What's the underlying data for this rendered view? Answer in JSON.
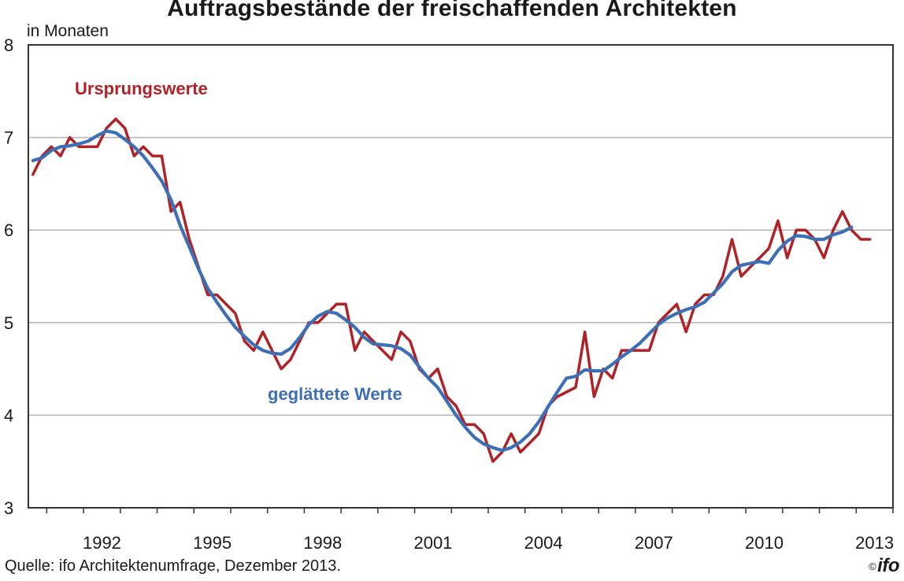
{
  "chart_data": {
    "type": "line",
    "title": "Auftragsbestände der freischaffenden Architekten",
    "ylabel": "in Monaten",
    "xlabel": "",
    "ylim": [
      3,
      8
    ],
    "yticks": [
      3,
      4,
      5,
      6,
      7,
      8
    ],
    "xlim": [
      1990.5,
      2014.0
    ],
    "xticks": [
      {
        "label": "1992",
        "x": 1992.0
      },
      {
        "label": "1995",
        "x": 1995.0
      },
      {
        "label": "1998",
        "x": 1998.0
      },
      {
        "label": "2001",
        "x": 2001.0
      },
      {
        "label": "2004",
        "x": 2004.0
      },
      {
        "label": "2007",
        "x": 2007.0
      },
      {
        "label": "2010",
        "x": 2010.0
      },
      {
        "label": "2013",
        "x": 2013.0
      }
    ],
    "grid": true,
    "series": [
      {
        "name": "Ursprungswerte",
        "color": "#b02226",
        "x": [
          1990.625,
          1990.875,
          1991.125,
          1991.375,
          1991.625,
          1991.875,
          1992.125,
          1992.375,
          1992.625,
          1992.875,
          1993.125,
          1993.375,
          1993.625,
          1993.875,
          1994.125,
          1994.375,
          1994.625,
          1994.875,
          1995.125,
          1995.375,
          1995.625,
          1995.875,
          1996.125,
          1996.375,
          1996.625,
          1996.875,
          1997.125,
          1997.375,
          1997.625,
          1997.875,
          1998.125,
          1998.375,
          1998.625,
          1998.875,
          1999.125,
          1999.375,
          1999.625,
          1999.875,
          2000.125,
          2000.375,
          2000.625,
          2000.875,
          2001.125,
          2001.375,
          2001.625,
          2001.875,
          2002.125,
          2002.375,
          2002.625,
          2002.875,
          2003.125,
          2003.375,
          2003.625,
          2003.875,
          2004.125,
          2004.375,
          2004.625,
          2004.875,
          2005.125,
          2005.375,
          2005.625,
          2005.875,
          2006.125,
          2006.375,
          2006.625,
          2006.875,
          2007.125,
          2007.375,
          2007.625,
          2007.875,
          2008.125,
          2008.375,
          2008.625,
          2008.875,
          2009.125,
          2009.375,
          2009.625,
          2009.875,
          2010.125,
          2010.375,
          2010.625,
          2010.875,
          2011.125,
          2011.375,
          2011.625,
          2011.875,
          2012.125,
          2012.375,
          2012.625,
          2012.875,
          2013.125,
          2013.375
        ],
        "values": [
          6.6,
          6.8,
          6.9,
          6.8,
          7.0,
          6.9,
          6.9,
          6.9,
          7.1,
          7.2,
          7.1,
          6.8,
          6.9,
          6.8,
          6.8,
          6.2,
          6.3,
          5.9,
          5.6,
          5.3,
          5.3,
          5.2,
          5.1,
          4.8,
          4.7,
          4.9,
          4.7,
          4.5,
          4.6,
          4.8,
          5.0,
          5.0,
          5.1,
          5.2,
          5.2,
          4.7,
          4.9,
          4.8,
          4.7,
          4.6,
          4.9,
          4.8,
          4.5,
          4.4,
          4.5,
          4.2,
          4.1,
          3.9,
          3.9,
          3.8,
          3.5,
          3.6,
          3.8,
          3.6,
          3.7,
          3.8,
          4.1,
          4.2,
          4.25,
          4.3,
          4.9,
          4.2,
          4.5,
          4.4,
          4.7,
          4.7,
          4.7,
          4.7,
          5.0,
          5.1,
          5.2,
          4.9,
          5.2,
          5.3,
          5.3,
          5.5,
          5.9,
          5.5,
          5.6,
          5.7,
          5.8,
          6.1,
          5.7,
          6.0,
          6.0,
          5.9,
          5.7,
          6.0,
          6.2,
          6.0,
          5.9,
          5.9
        ]
      },
      {
        "name": "geglättete Werte",
        "color": "#3d6fb6",
        "x": [
          1990.625,
          1990.875,
          1991.125,
          1991.375,
          1991.625,
          1991.875,
          1992.125,
          1992.375,
          1992.625,
          1992.875,
          1993.125,
          1993.375,
          1993.625,
          1993.875,
          1994.125,
          1994.375,
          1994.625,
          1994.875,
          1995.125,
          1995.375,
          1995.625,
          1995.875,
          1996.125,
          1996.375,
          1996.625,
          1996.875,
          1997.125,
          1997.375,
          1997.625,
          1997.875,
          1998.125,
          1998.375,
          1998.625,
          1998.875,
          1999.125,
          1999.375,
          1999.625,
          1999.875,
          2000.125,
          2000.375,
          2000.625,
          2000.875,
          2001.125,
          2001.375,
          2001.625,
          2001.875,
          2002.125,
          2002.375,
          2002.625,
          2002.875,
          2003.125,
          2003.375,
          2003.625,
          2003.875,
          2004.125,
          2004.375,
          2004.625,
          2004.875,
          2005.125,
          2005.375,
          2005.625,
          2005.875,
          2006.125,
          2006.375,
          2006.625,
          2006.875,
          2007.125,
          2007.375,
          2007.625,
          2007.875,
          2008.125,
          2008.375,
          2008.625,
          2008.875,
          2009.125,
          2009.375,
          2009.625,
          2009.875,
          2010.125,
          2010.375,
          2010.625,
          2010.875,
          2011.125,
          2011.375,
          2011.625,
          2011.875,
          2012.125,
          2012.375,
          2012.625,
          2012.875
        ],
        "values": [
          6.75,
          6.78,
          6.86,
          6.9,
          6.91,
          6.93,
          6.96,
          7.02,
          7.07,
          7.05,
          6.98,
          6.9,
          6.8,
          6.67,
          6.53,
          6.33,
          6.05,
          5.82,
          5.58,
          5.37,
          5.22,
          5.08,
          4.95,
          4.85,
          4.76,
          4.7,
          4.67,
          4.66,
          4.72,
          4.84,
          4.98,
          5.07,
          5.12,
          5.1,
          5.03,
          4.95,
          4.84,
          4.77,
          4.76,
          4.75,
          4.72,
          4.65,
          4.52,
          4.4,
          4.3,
          4.15,
          4.0,
          3.87,
          3.76,
          3.69,
          3.65,
          3.62,
          3.65,
          3.71,
          3.8,
          3.93,
          4.09,
          4.25,
          4.4,
          4.42,
          4.49,
          4.48,
          4.48,
          4.55,
          4.63,
          4.7,
          4.78,
          4.88,
          4.98,
          5.05,
          5.1,
          5.14,
          5.17,
          5.22,
          5.32,
          5.42,
          5.55,
          5.62,
          5.64,
          5.66,
          5.64,
          5.78,
          5.88,
          5.94,
          5.93,
          5.9,
          5.9,
          5.95,
          5.98,
          6.03
        ]
      }
    ],
    "annotations": [
      {
        "text": "Ursprungswerte",
        "series": 0
      },
      {
        "text": "geglättete Werte",
        "series": 1
      }
    ]
  },
  "source": "Quelle: ifo Architektenumfrage, Dezember  2013.",
  "logo": {
    "copyright": "©",
    "text": "ifo"
  }
}
